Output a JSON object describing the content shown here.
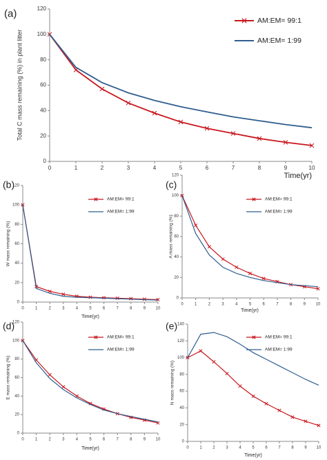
{
  "chart_data": [
    {
      "panel": "(a)",
      "type": "line",
      "xlabel": "Time(yr)",
      "ylabel": "Total C mass remaining (%) in plant litter",
      "xticks": [
        "0",
        "1",
        "2",
        "3",
        "4",
        "5",
        "6",
        "7",
        "8",
        "9",
        "10"
      ],
      "yticks": [
        "0",
        "20",
        "40",
        "60",
        "80",
        "100",
        "120"
      ],
      "xlim": [
        0,
        10
      ],
      "ylim": [
        0,
        120
      ],
      "legend": "top-right",
      "series": [
        {
          "name": "AM:EM= 99:1",
          "color": "#c8161d",
          "marker": "x",
          "values": [
            100,
            72,
            57,
            46,
            38,
            31,
            26,
            22,
            18,
            15,
            12.5
          ]
        },
        {
          "name": "AM:EM= 1:99",
          "color": "#2f5d8e",
          "marker": "",
          "values": [
            100,
            74,
            62,
            54,
            48,
            43,
            39,
            35,
            32,
            29,
            26.5
          ]
        }
      ]
    },
    {
      "panel": "(b)",
      "type": "line",
      "xlabel": "Time(yr)",
      "ylabel": "W mass remaining (%)",
      "xticks": [
        "0",
        "1",
        "2",
        "3",
        "4",
        "5",
        "6",
        "7",
        "8",
        "9",
        "10"
      ],
      "yticks": [
        "0",
        "20",
        "40",
        "60",
        "80",
        "100",
        "120"
      ],
      "xlim": [
        0,
        10
      ],
      "ylim": [
        0,
        120
      ],
      "legend": "top-right",
      "series": [
        {
          "name": "AM:EM= 99:1",
          "color": "#c8161d",
          "marker": "x",
          "values": [
            100,
            16,
            11,
            8,
            6,
            5,
            4.5,
            4,
            3.5,
            3,
            2.5
          ]
        },
        {
          "name": "AM:EM= 1:99",
          "color": "#2f5d8e",
          "marker": "",
          "values": [
            100,
            14,
            9,
            6,
            5,
            4.5,
            4,
            3.5,
            3,
            2.5,
            2
          ]
        }
      ]
    },
    {
      "panel": "(c)",
      "type": "line",
      "xlabel": "Time(yr)",
      "ylabel": "A mass remaining (%)",
      "xticks": [
        "0",
        "1",
        "2",
        "3",
        "4",
        "5",
        "6",
        "7",
        "8",
        "9",
        "10"
      ],
      "yticks": [
        "0",
        "20",
        "40",
        "60",
        "80",
        "100",
        "120"
      ],
      "xlim": [
        0,
        10
      ],
      "ylim": [
        0,
        120
      ],
      "legend": "top-right",
      "series": [
        {
          "name": "AM:EM= 99:1",
          "color": "#c8161d",
          "marker": "x",
          "values": [
            100,
            71,
            50,
            38,
            30,
            24,
            19,
            16,
            13,
            11,
            9
          ]
        },
        {
          "name": "AM:EM= 1:99",
          "color": "#2f5d8e",
          "marker": "",
          "values": [
            100,
            63,
            42,
            30,
            24,
            20,
            17,
            15,
            13,
            12,
            11
          ]
        }
      ]
    },
    {
      "panel": "(d)",
      "type": "line",
      "xlabel": "Time(yr)",
      "ylabel": "E mass remaining (%)",
      "xticks": [
        "0",
        "1",
        "2",
        "3",
        "4",
        "5",
        "6",
        "7",
        "8",
        "9",
        "10"
      ],
      "yticks": [
        "0",
        "20",
        "40",
        "60",
        "80",
        "100",
        "120"
      ],
      "xlim": [
        0,
        10
      ],
      "ylim": [
        0,
        120
      ],
      "legend": "top-right",
      "series": [
        {
          "name": "AM:EM= 99:1",
          "color": "#c8161d",
          "marker": "x",
          "values": [
            100,
            79,
            63,
            50,
            40,
            32,
            26,
            21,
            17,
            14,
            11
          ]
        },
        {
          "name": "AM:EM= 1:99",
          "color": "#2f5d8e",
          "marker": "",
          "values": [
            100,
            76,
            59,
            47,
            38,
            31,
            25,
            21,
            18,
            15,
            12
          ]
        }
      ]
    },
    {
      "panel": "(e)",
      "type": "line",
      "xlabel": "Time(yr)",
      "ylabel": "N mass remaining (%)",
      "xticks": [
        "0",
        "1",
        "2",
        "3",
        "4",
        "5",
        "6",
        "7",
        "8",
        "9",
        "10"
      ],
      "yticks": [
        "0",
        "20",
        "40",
        "60",
        "80",
        "100",
        "120",
        "140"
      ],
      "xlim": [
        0,
        10
      ],
      "ylim": [
        0,
        140
      ],
      "legend": "top-right",
      "series": [
        {
          "name": "AM:EM= 99:1",
          "color": "#c8161d",
          "marker": "x",
          "values": [
            100,
            108,
            95,
            81,
            66,
            54,
            45,
            37,
            29,
            24,
            19
          ]
        },
        {
          "name": "AM:EM= 1:99",
          "color": "#2f5d8e",
          "marker": "",
          "values": [
            100,
            128,
            130,
            125,
            116,
            106,
            98,
            90,
            82,
            74,
            67
          ]
        }
      ]
    }
  ]
}
